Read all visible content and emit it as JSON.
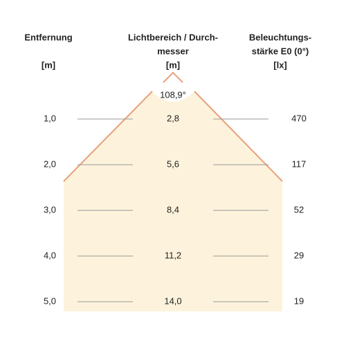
{
  "headers": {
    "distance": [
      "Entfernung",
      "[m]"
    ],
    "diameter": [
      "Lichtbereich / Durch-",
      "messer",
      "[m]"
    ],
    "illuminance": [
      "Beleuchtungs-",
      "stärke E0 (0°)",
      "[lx]"
    ]
  },
  "angle": "108,9°",
  "rows": [
    [
      "1,0",
      "2,8",
      "470"
    ],
    [
      "2,0",
      "5,6",
      "117"
    ],
    [
      "3,0",
      "8,4",
      "52"
    ],
    [
      "4,0",
      "11,2",
      "29"
    ],
    [
      "5,0",
      "14,0",
      "19"
    ]
  ]
}
